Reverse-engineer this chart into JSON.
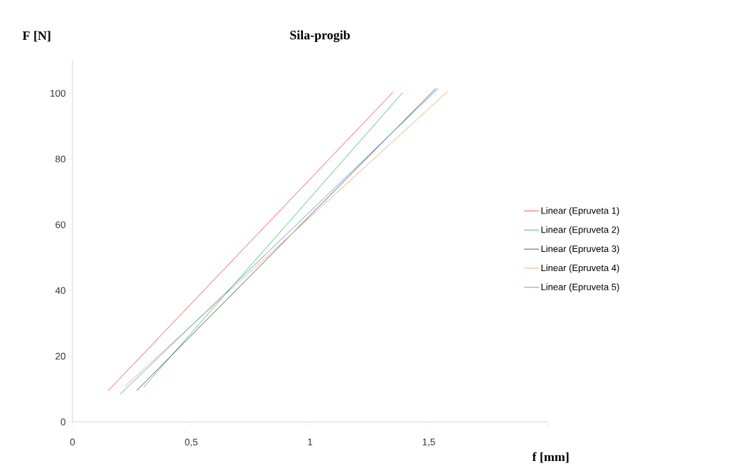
{
  "chart_data": {
    "type": "line",
    "title": "Sila-progib",
    "xlabel": "f  [mm]",
    "ylabel": "F [N]",
    "xlim": [
      0,
      2
    ],
    "ylim": [
      0,
      110
    ],
    "xticks": [
      0,
      {
        "value": 0.5,
        "label": "0,5"
      },
      1,
      {
        "value": 1.5,
        "label": "1,5"
      },
      {
        "value": 2,
        "label": null
      }
    ],
    "yticks": [
      0,
      20,
      40,
      60,
      80,
      100
    ],
    "grid": false,
    "legend": "right",
    "marker": "none",
    "line_style": "solid",
    "series": [
      {
        "name": "Linear (Epruveta 1)",
        "color": "#ff3333",
        "x": [
          0.15,
          1.35
        ],
        "values": [
          9.5,
          100.4
        ]
      },
      {
        "name": "Linear (Epruveta 2)",
        "color": "#22bb55",
        "x": [
          0.3,
          1.39
        ],
        "values": [
          10.6,
          100.2
        ]
      },
      {
        "name": "Linear (Epruveta 3)",
        "color": "#333333",
        "x": [
          0.27,
          1.53
        ],
        "values": [
          9.5,
          101.5
        ]
      },
      {
        "name": "Linear (Epruveta 4)",
        "color": "#f29a55",
        "x": [
          0.22,
          1.58
        ],
        "values": [
          10.8,
          100.6
        ]
      },
      {
        "name": "Linear (Epruveta 5)",
        "color": "#3a8ad0",
        "x": [
          0.2,
          1.54
        ],
        "values": [
          8.4,
          101.5
        ]
      }
    ]
  }
}
